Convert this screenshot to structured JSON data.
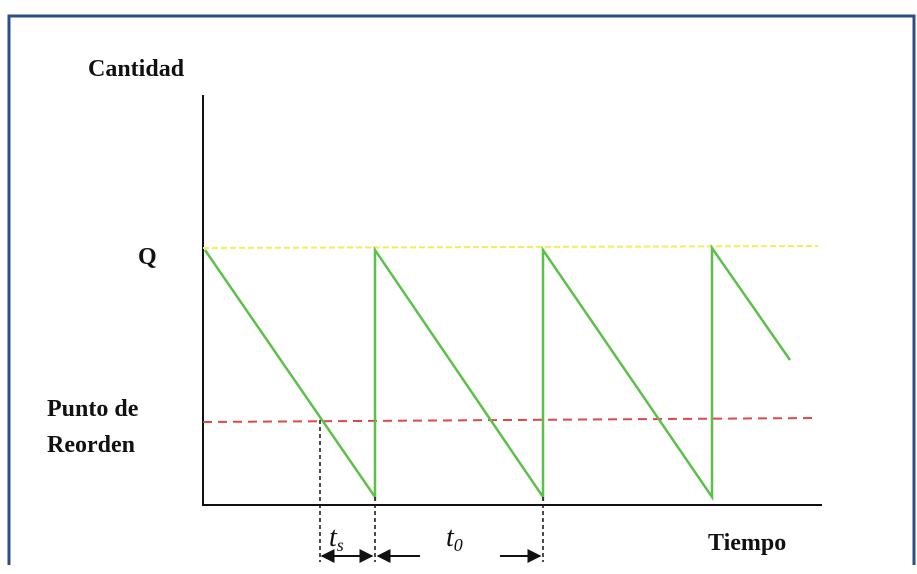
{
  "axes": {
    "y_label": "Cantidad",
    "x_label": "Tiempo"
  },
  "levels": {
    "q": "Q",
    "reorder": [
      "Punto de",
      "Reorden"
    ]
  },
  "intervals": {
    "lead_time": {
      "symbol": "t",
      "subscript": "s"
    },
    "cycle": {
      "symbol": "t",
      "subscript": "0"
    }
  }
}
